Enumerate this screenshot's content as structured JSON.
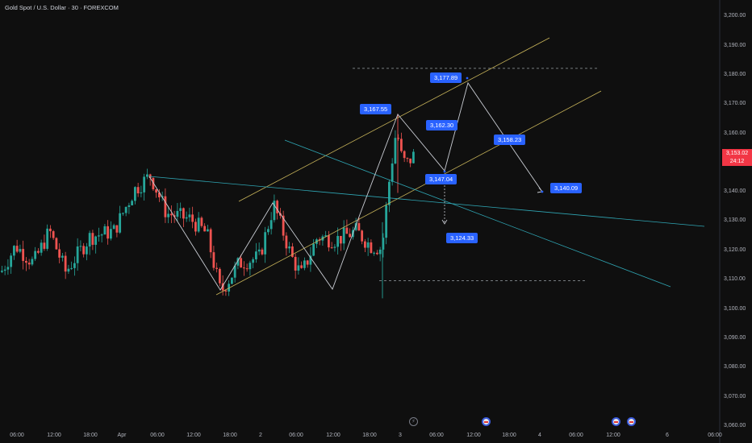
{
  "header": {
    "title": "Gold Spot / U.S. Dollar · 30 · FOREXCOM"
  },
  "price_tag": {
    "price": "3,153.02",
    "countdown": "24:12"
  },
  "colors": {
    "background": "#0f0f0f",
    "up_candle": "#26a69a",
    "down_candle": "#ef5350",
    "yellow_channel": "#c8b45a",
    "cyan_channel": "#2fa6b4",
    "label_bg": "#2962ff",
    "price_tag_bg": "#f23645"
  },
  "annotations": [
    {
      "text": "3,177.89"
    },
    {
      "text": "3,167.55"
    },
    {
      "text": "3,162.30"
    },
    {
      "text": "3,158.23"
    },
    {
      "text": "3,147.04"
    },
    {
      "text": "3,140.09"
    },
    {
      "text": "3,124.33"
    }
  ],
  "events": [
    {
      "icon": "lightning-icon"
    },
    {
      "icon": "us-flag-icon"
    },
    {
      "icon": "us-flag-icon"
    },
    {
      "icon": "us-flag-icon"
    }
  ],
  "chart_data": {
    "type": "candlestick",
    "title": "Gold Spot / U.S. Dollar · 30 · FOREXCOM",
    "y_axis": {
      "side": "right",
      "range": [
        3055,
        3205
      ],
      "ticks": [
        "3,060.00",
        "3,070.00",
        "3,080.00",
        "3,090.00",
        "3,100.00",
        "3,110.00",
        "3,120.00",
        "3,130.00",
        "3,140.00",
        "3,150.00",
        "3,160.00",
        "3,170.00",
        "3,180.00",
        "3,190.00",
        "3,200.00"
      ]
    },
    "x_axis": {
      "ticks": [
        "06:00",
        "12:00",
        "18:00",
        "Apr",
        "06:00",
        "12:00",
        "18:00",
        "2",
        "06:00",
        "12:00",
        "18:00",
        "3",
        "06:00",
        "12:00",
        "18:00",
        "4",
        "06:00",
        "12:00",
        "6",
        "06:00"
      ]
    },
    "grid": false,
    "last_price": 3153.02,
    "price_range_shown": [
      3100.5,
      3169
    ],
    "zigzag_path_levels": [
      3148,
      3105,
      3137,
      3107,
      3132,
      3167.55,
      3147.04,
      3177.89,
      3158.23,
      3140.09
    ],
    "horizontal_levels": [
      3182.5,
      3110
    ],
    "projected_levels": [
      3177.89,
      3167.55,
      3162.3,
      3158.23,
      3147.04,
      3140.09,
      3124.33
    ]
  }
}
